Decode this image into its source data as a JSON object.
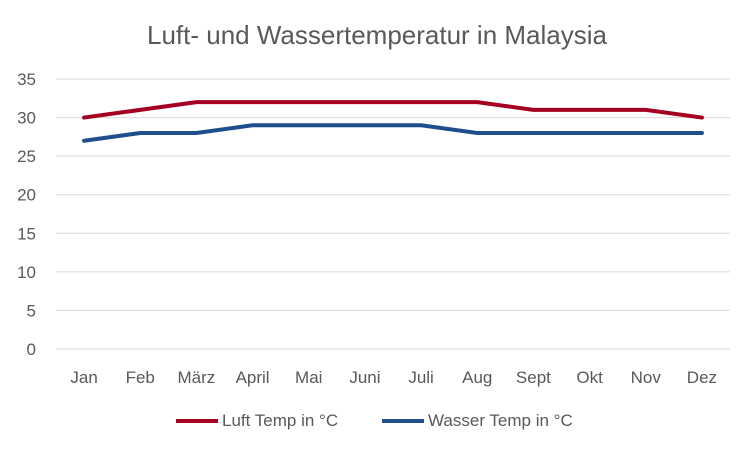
{
  "chart_data": {
    "type": "line",
    "title": "Luft- und Wassertemperatur in Malaysia",
    "categories": [
      "Jan",
      "Feb",
      "März",
      "April",
      "Mai",
      "Juni",
      "Juli",
      "Aug",
      "Sept",
      "Okt",
      "Nov",
      "Dez"
    ],
    "series": [
      {
        "name": "Luft Temp in °C",
        "color": "#A50021",
        "values": [
          30,
          31,
          32,
          32,
          32,
          32,
          32,
          32,
          31,
          31,
          31,
          30
        ]
      },
      {
        "name": "Wasser Temp in °C",
        "color": "#1F4E8C",
        "values": [
          27,
          28,
          28,
          29,
          29,
          29,
          29,
          28,
          28,
          28,
          28,
          28
        ]
      }
    ],
    "ylim": [
      0,
      35
    ],
    "yticks": [
      0,
      5,
      10,
      15,
      20,
      25,
      30,
      35
    ],
    "grid": true,
    "legend_position": "bottom"
  }
}
